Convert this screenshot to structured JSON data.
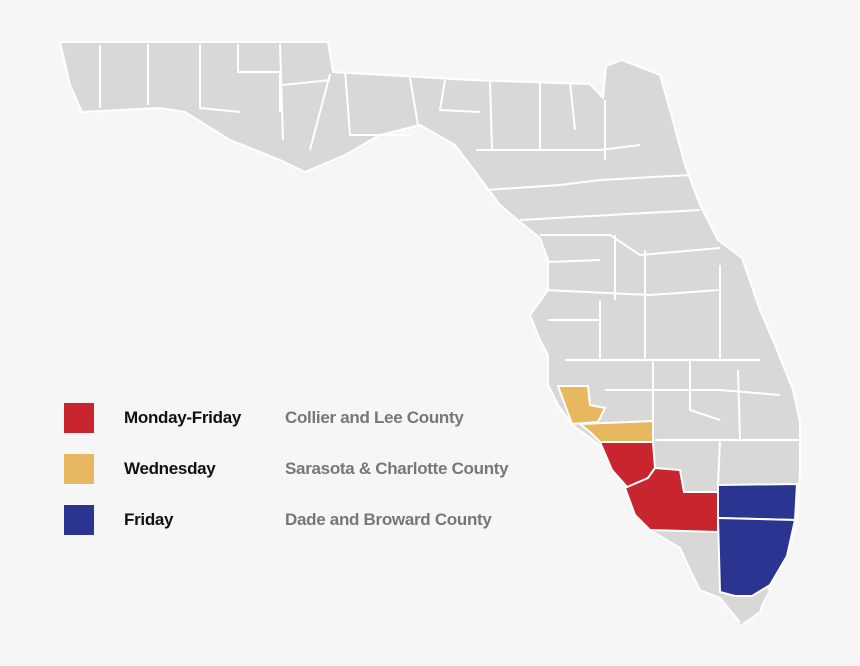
{
  "map": {
    "colors": {
      "background": "#f6f6f6",
      "county_fill": "#d8d8d8",
      "county_border": "#ffffff",
      "monday_friday": "#c8252f",
      "wednesday": "#e8b860",
      "friday": "#2b3591"
    },
    "highlighted_counties": [
      {
        "name": "Sarasota",
        "schedule": "Wednesday"
      },
      {
        "name": "Charlotte",
        "schedule": "Wednesday"
      },
      {
        "name": "Lee",
        "schedule": "Monday-Friday"
      },
      {
        "name": "Collier",
        "schedule": "Monday-Friday"
      },
      {
        "name": "Broward",
        "schedule": "Friday"
      },
      {
        "name": "Miami-Dade",
        "schedule": "Friday"
      }
    ]
  },
  "legend": {
    "items": [
      {
        "day": "Monday-Friday",
        "area": "Collier and Lee County",
        "color": "#c8252f"
      },
      {
        "day": "Wednesday",
        "area": "Sarasota & Charlotte County",
        "color": "#e8b860"
      },
      {
        "day": "Friday",
        "area": "Dade and Broward County",
        "color": "#2b3591"
      }
    ]
  }
}
